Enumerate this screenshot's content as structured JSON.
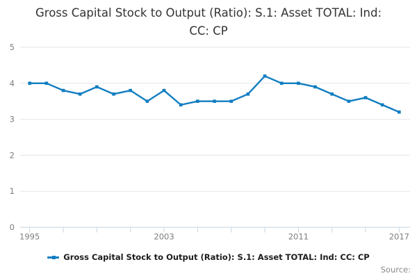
{
  "title": "Gross Capital Stock to Output (Ratio): S.1: Asset TOTAL: Ind: CC: CP",
  "legend": {
    "label": "Gross Capital Stock to Output (Ratio): S.1: Asset TOTAL: Ind: CC: CP"
  },
  "source": {
    "label": "Source:"
  },
  "colors": {
    "line": "#117dc1",
    "grid": "#e6e6e6",
    "axis_line": "#c6d4e1",
    "axis_text": "#7d7d7d",
    "title_text": "#333333"
  },
  "chart_data": {
    "type": "line",
    "title": "Gross Capital Stock to Output (Ratio): S.1: Asset TOTAL: Ind: CC: CP",
    "series_name": "Gross Capital Stock to Output (Ratio): S.1: Asset TOTAL: Ind: CC: CP",
    "x": [
      1995,
      1996,
      1997,
      1998,
      1999,
      2000,
      2001,
      2002,
      2003,
      2004,
      2005,
      2006,
      2007,
      2008,
      2009,
      2010,
      2011,
      2012,
      2013,
      2014,
      2015,
      2016,
      2017
    ],
    "values": [
      4.0,
      4.0,
      3.8,
      3.7,
      3.9,
      3.7,
      3.8,
      3.5,
      3.8,
      3.4,
      3.5,
      3.5,
      3.5,
      3.7,
      4.2,
      4.0,
      4.0,
      3.9,
      3.7,
      3.5,
      3.6,
      3.4,
      3.2
    ],
    "xlabel": "",
    "ylabel": "",
    "ylim": [
      0,
      5
    ],
    "y_ticks": [
      0,
      1,
      2,
      3,
      4,
      5
    ],
    "x_tick_years": [
      1995,
      1997,
      1999,
      2001,
      2003,
      2005,
      2007,
      2009,
      2011,
      2013,
      2015,
      2017
    ],
    "x_tick_labels": [
      1995,
      2003,
      2011,
      2017
    ],
    "grid": true,
    "legend_position": "bottom",
    "marker": "square"
  }
}
